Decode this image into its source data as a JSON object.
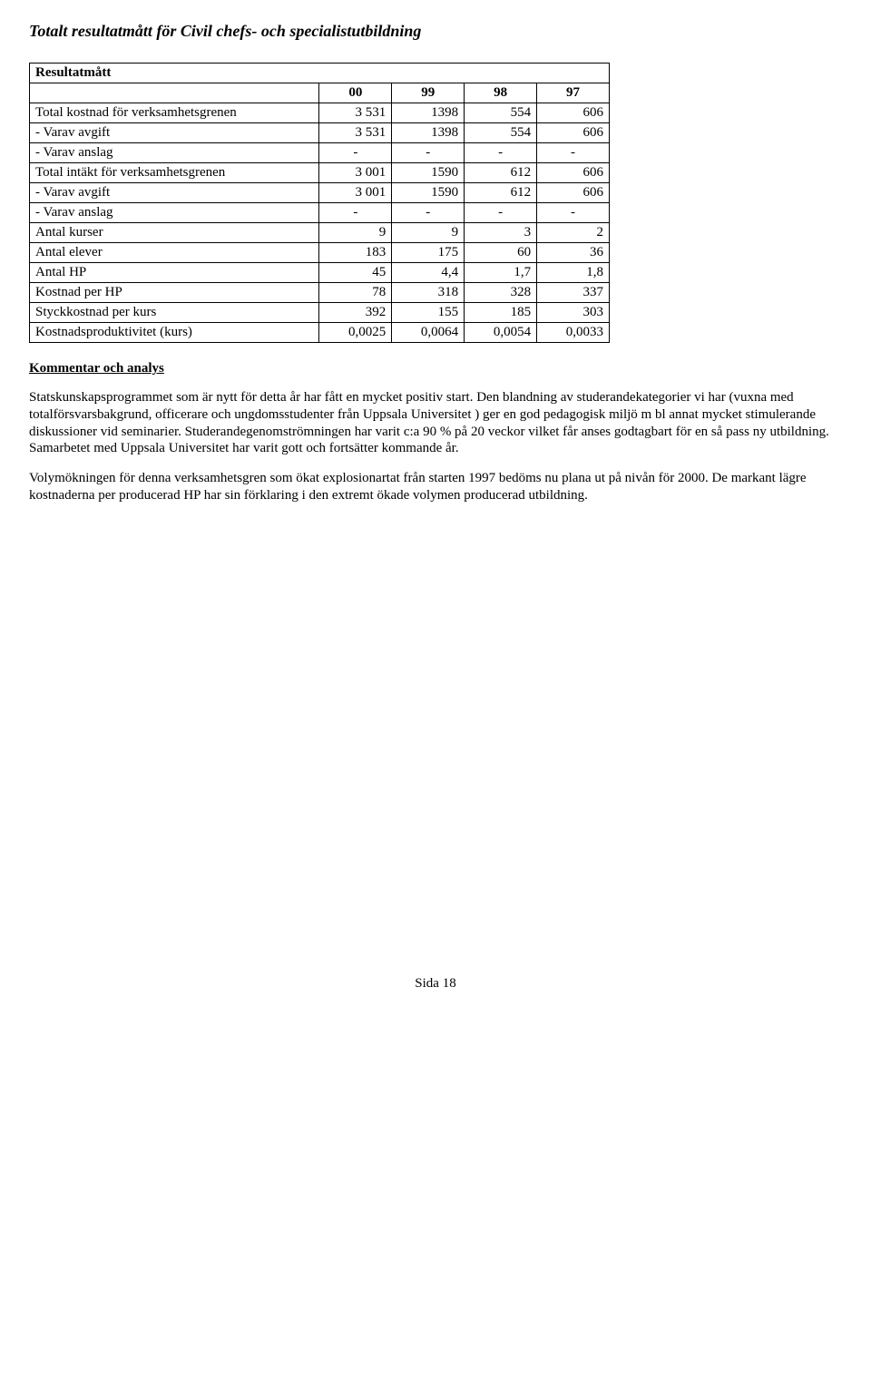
{
  "title": "Totalt resultatmått för Civil chefs- och specialistutbildning",
  "table": {
    "header_label": "Resultatmått",
    "year_cols": [
      "00",
      "99",
      "98",
      "97"
    ],
    "rows": [
      {
        "label": "Total kostnad för verksamhetsgrenen",
        "vals": [
          "3 531",
          "1398",
          "554",
          "606"
        ]
      },
      {
        "label": "- Varav avgift",
        "vals": [
          "3 531",
          "1398",
          "554",
          "606"
        ]
      },
      {
        "label": "- Varav anslag",
        "vals": [
          "-",
          "-",
          "-",
          "-"
        ]
      },
      {
        "label": "Total intäkt för verksamhetsgrenen",
        "vals": [
          "3 001",
          "1590",
          "612",
          "606"
        ]
      },
      {
        "label": "- Varav avgift",
        "vals": [
          "3 001",
          "1590",
          "612",
          "606"
        ]
      },
      {
        "label": "- Varav anslag",
        "vals": [
          "-",
          "-",
          "-",
          "-"
        ]
      },
      {
        "label": "Antal kurser",
        "vals": [
          "9",
          "9",
          "3",
          "2"
        ]
      },
      {
        "label": "Antal elever",
        "vals": [
          "183",
          "175",
          "60",
          "36"
        ]
      },
      {
        "label": "Antal HP",
        "vals": [
          "45",
          "4,4",
          "1,7",
          "1,8"
        ]
      },
      {
        "label": "Kostnad per HP",
        "vals": [
          "78",
          "318",
          "328",
          "337"
        ]
      },
      {
        "label": "Styckkostnad per kurs",
        "vals": [
          "392",
          "155",
          "185",
          "303"
        ]
      },
      {
        "label": "Kostnadsproduktivitet (kurs)",
        "vals": [
          "0,0025",
          "0,0064",
          "0,0054",
          "0,0033"
        ]
      }
    ],
    "col_widths": [
      "320px",
      "80px",
      "80px",
      "80px",
      "80px"
    ],
    "border_color": "#000000",
    "background_color": "#ffffff",
    "font_size_pt": 11
  },
  "section_head": "Kommentar och analys",
  "paragraphs": [
    "Statskunskapsprogrammet som är nytt för detta år har fått en mycket positiv start. Den blandning av studerandekategorier vi har (vuxna med totalförsvarsbakgrund, officerare och ungdomsstudenter från Uppsala Universitet ) ger en god pedagogisk miljö m bl annat mycket stimulerande diskussioner vid seminarier. Studerandegenomströmningen har varit c:a 90 % på 20 veckor vilket får anses godtagbart för en så pass ny utbildning. Samarbetet med Uppsala Universitet har varit gott och fortsätter kommande år.",
    "Volymökningen för denna verksamhetsgren som ökat explosionartat från starten 1997 bedöms nu plana ut på nivån för 2000. De markant lägre kostnaderna per producerad HP har sin förklaring i den extremt ökade volymen producerad utbildning."
  ],
  "footer": "Sida 18"
}
